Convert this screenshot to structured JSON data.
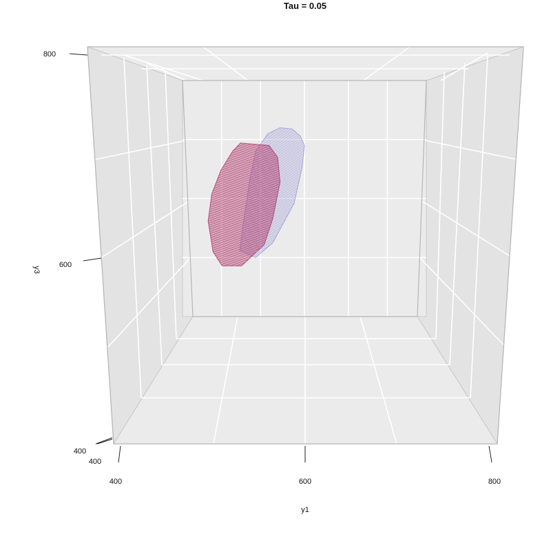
{
  "chart_data": {
    "type": "surface3d",
    "title": "Tau = 0.05",
    "xlabel": "y1",
    "ylabel": "",
    "zlabel": "y3",
    "x_ticks": [
      "400",
      "600",
      "800"
    ],
    "y_ticks": [
      "400"
    ],
    "z_ticks": [
      "400",
      "600",
      "800"
    ],
    "xlim": [
      400,
      800
    ],
    "zlim": [
      400,
      800
    ],
    "grid": true,
    "legend": "none",
    "series": [
      {
        "color": "#9b9bd6",
        "opacity": 0.45,
        "outline": [
          [
            540,
            710
          ],
          [
            560,
            720
          ],
          [
            580,
            718
          ],
          [
            593,
            706
          ],
          [
            600,
            690
          ],
          [
            596,
            652
          ],
          [
            583,
            592
          ],
          [
            548,
            525
          ],
          [
            520,
            500
          ],
          [
            494,
            512
          ],
          [
            500,
            560
          ],
          [
            510,
            630
          ],
          [
            520,
            680
          ]
        ]
      },
      {
        "color": "#b0386a",
        "opacity": 0.7,
        "outline": [
          [
            482,
            680
          ],
          [
            495,
            694
          ],
          [
            542,
            690
          ],
          [
            556,
            670
          ],
          [
            560,
            628
          ],
          [
            548,
            566
          ],
          [
            534,
            522
          ],
          [
            497,
            486
          ],
          [
            465,
            486
          ],
          [
            450,
            510
          ],
          [
            442,
            562
          ],
          [
            448,
            608
          ],
          [
            463,
            648
          ]
        ]
      }
    ]
  }
}
